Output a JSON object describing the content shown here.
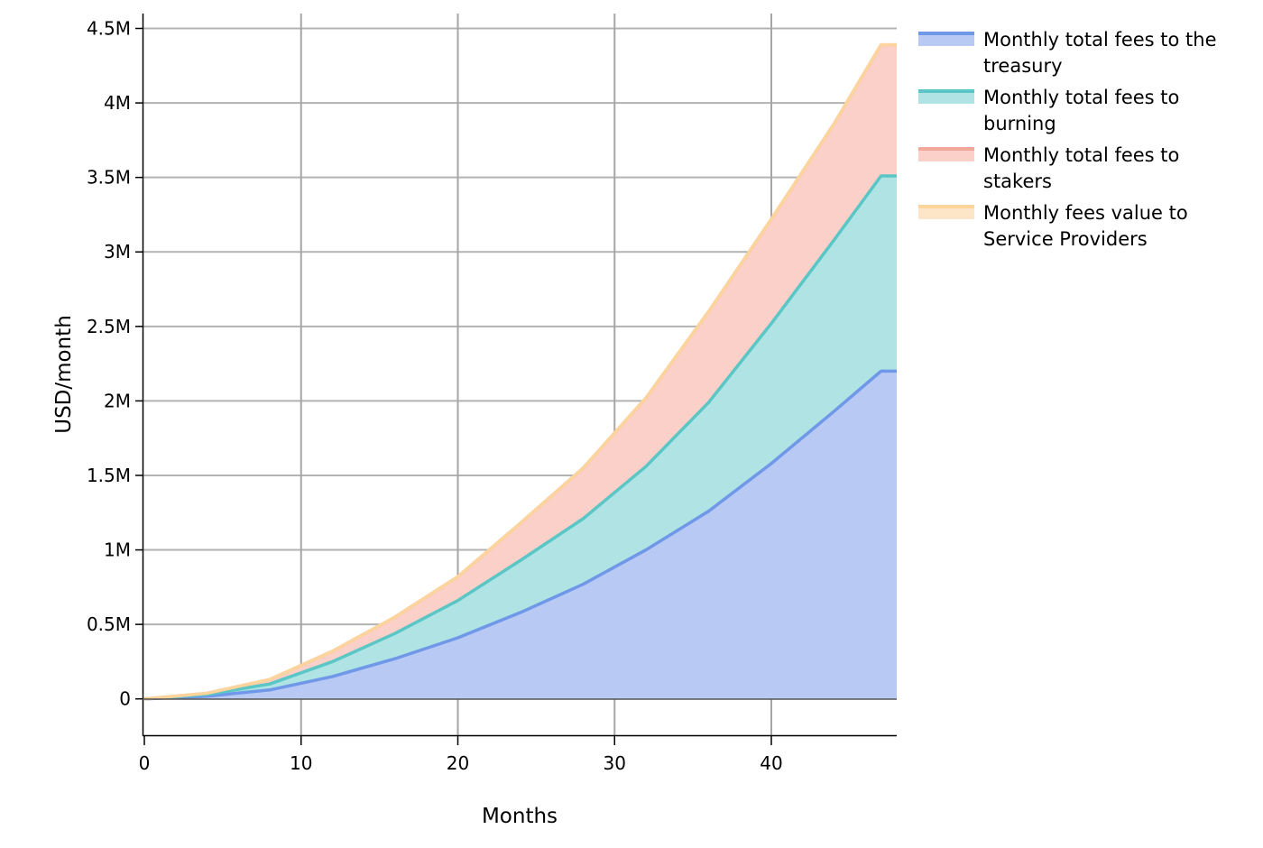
{
  "chart_data": {
    "type": "area",
    "stacked": true,
    "xlabel": "Months",
    "ylabel": "USD/month",
    "xlim": [
      0,
      48
    ],
    "ylim": [
      -250000,
      4600000
    ],
    "x_ticks": [
      0,
      10,
      20,
      30,
      40
    ],
    "x_tick_labels": [
      "0",
      "10",
      "20",
      "30",
      "40"
    ],
    "y_ticks": [
      0,
      500000,
      1000000,
      1500000,
      2000000,
      2500000,
      3000000,
      3500000,
      4000000,
      4500000
    ],
    "y_tick_labels": [
      "0",
      "0.5M",
      "1M",
      "1.5M",
      "2M",
      "2.5M",
      "3M",
      "3.5M",
      "4M",
      "4.5M"
    ],
    "grid": true,
    "legend_position": "right",
    "x": [
      0,
      4,
      8,
      12,
      16,
      20,
      24,
      28,
      32,
      36,
      40,
      44,
      47,
      48
    ],
    "series": [
      {
        "name": "Monthly total fees to the treasury",
        "color": "#6f98e8",
        "fill": "#b8c9f3",
        "values": [
          0,
          18000,
          60000,
          150000,
          270000,
          410000,
          580000,
          770000,
          1000000,
          1260000,
          1580000,
          1930000,
          2200000,
          2200000
        ]
      },
      {
        "name": "Monthly total fees to burning",
        "color": "#5bc6c6",
        "fill": "#b0e3e3",
        "values": [
          0,
          12000,
          40000,
          100000,
          170000,
          250000,
          350000,
          440000,
          560000,
          730000,
          940000,
          1150000,
          1310000,
          1310000
        ]
      },
      {
        "name": "Monthly total fees to stakers",
        "color": "#f2a99b",
        "fill": "#fad0c8",
        "values": [
          0,
          8000,
          30000,
          70000,
          110000,
          160000,
          250000,
          340000,
          460000,
          610000,
          700000,
          780000,
          880000,
          880000
        ]
      },
      {
        "name": "Monthly fees value to Service Providers",
        "color": "#fcd49c",
        "fill": "#fde6c8",
        "values": [
          0,
          0,
          0,
          0,
          0,
          0,
          0,
          0,
          0,
          0,
          0,
          0,
          0,
          0
        ]
      }
    ]
  }
}
